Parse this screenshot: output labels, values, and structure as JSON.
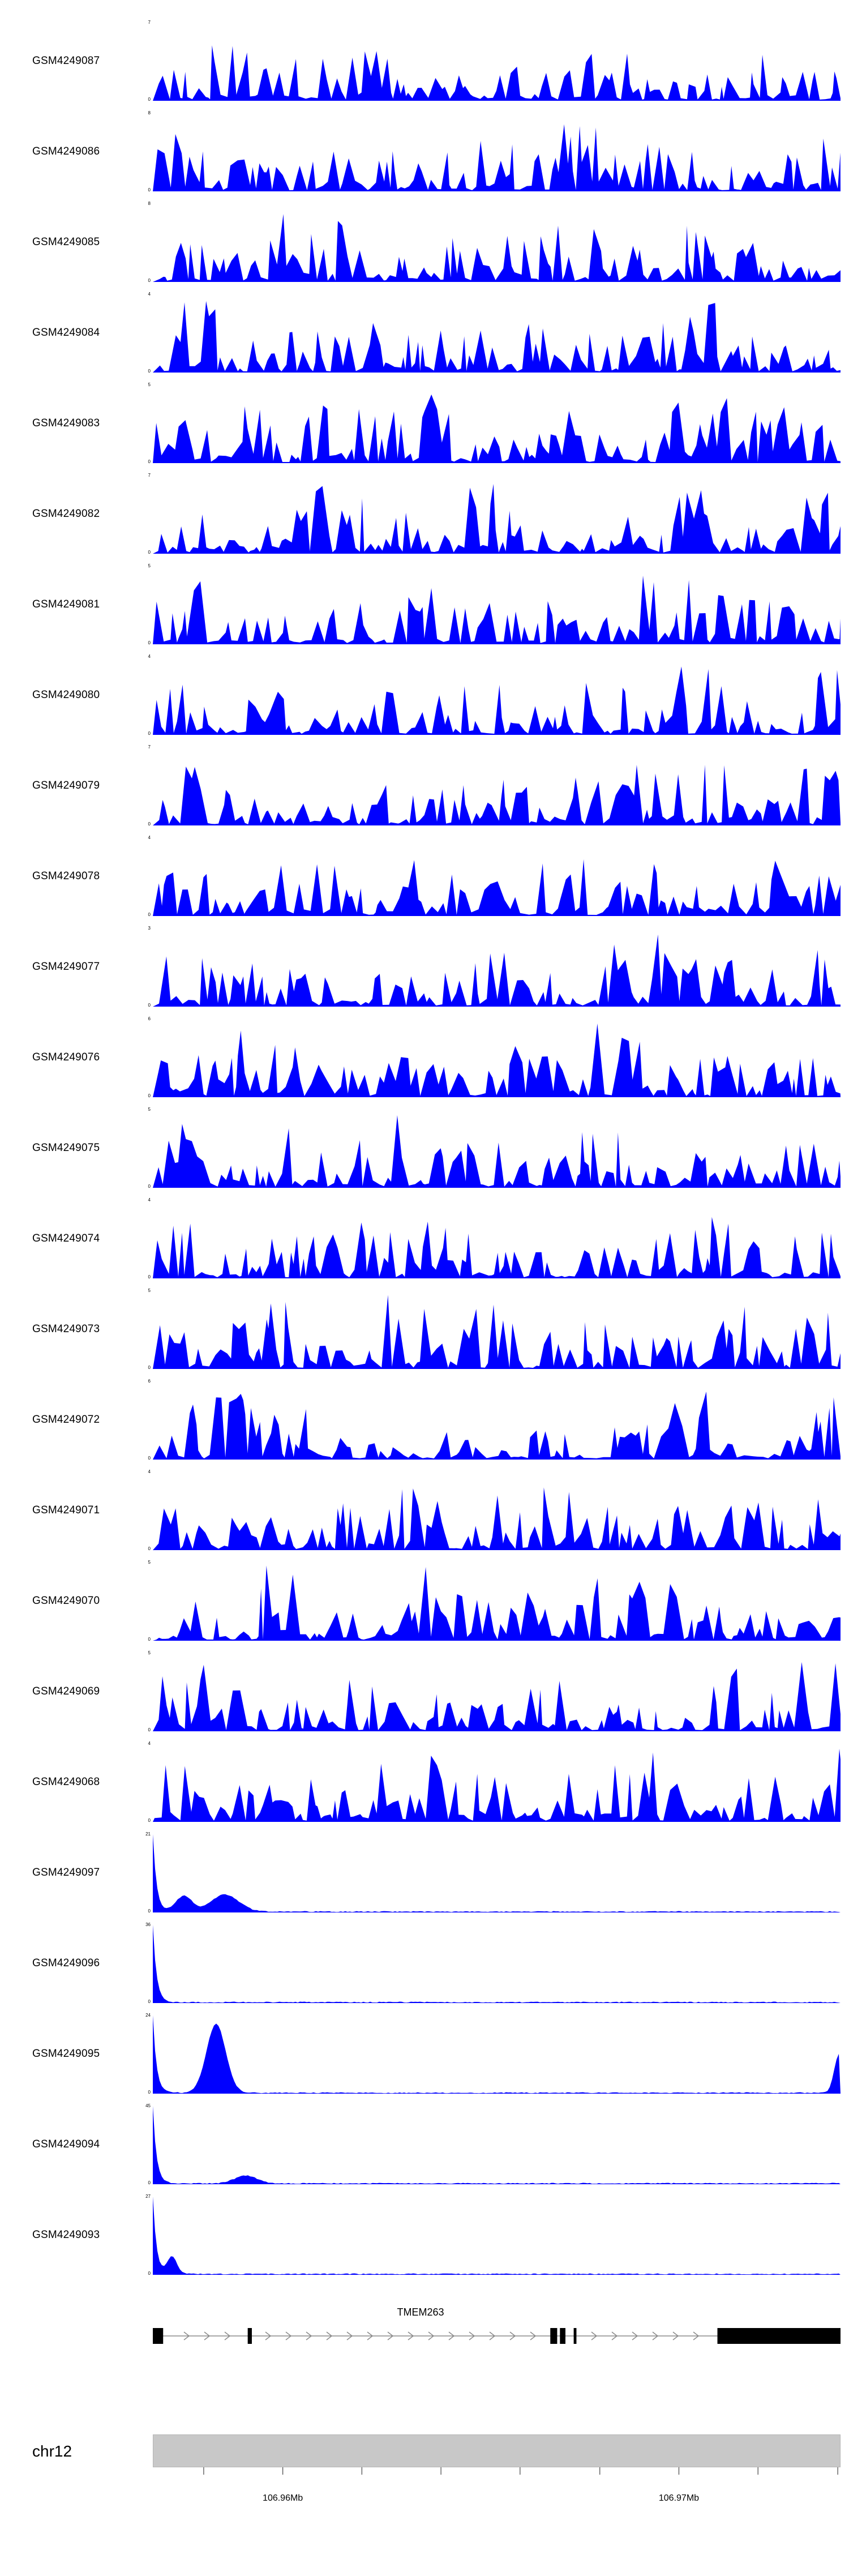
{
  "chart_data": {
    "type": "area",
    "title": "",
    "track_color": "#0000FF",
    "tracks": [
      {
        "name": "GSM4249087",
        "ymax": "7",
        "ymin": "0",
        "kind": "coverage",
        "seed": 101
      },
      {
        "name": "GSM4249086",
        "ymax": "8",
        "ymin": "0",
        "kind": "coverage",
        "seed": 102
      },
      {
        "name": "GSM4249085",
        "ymax": "8",
        "ymin": "0",
        "kind": "coverage",
        "seed": 103
      },
      {
        "name": "GSM4249084",
        "ymax": "4",
        "ymin": "0",
        "kind": "coverage",
        "seed": 104
      },
      {
        "name": "GSM4249083",
        "ymax": "5",
        "ymin": "0",
        "kind": "coverage",
        "seed": 105
      },
      {
        "name": "GSM4249082",
        "ymax": "7",
        "ymin": "0",
        "kind": "coverage",
        "seed": 106
      },
      {
        "name": "GSM4249081",
        "ymax": "5",
        "ymin": "0",
        "kind": "coverage",
        "seed": 107
      },
      {
        "name": "GSM4249080",
        "ymax": "4",
        "ymin": "0",
        "kind": "coverage",
        "seed": 108
      },
      {
        "name": "GSM4249079",
        "ymax": "7",
        "ymin": "0",
        "kind": "coverage",
        "seed": 109
      },
      {
        "name": "GSM4249078",
        "ymax": "4",
        "ymin": "0",
        "kind": "coverage",
        "seed": 110
      },
      {
        "name": "GSM4249077",
        "ymax": "3",
        "ymin": "0",
        "kind": "coverage",
        "seed": 111
      },
      {
        "name": "GSM4249076",
        "ymax": "6",
        "ymin": "0",
        "kind": "coverage",
        "seed": 112
      },
      {
        "name": "GSM4249075",
        "ymax": "5",
        "ymin": "0",
        "kind": "coverage",
        "seed": 113
      },
      {
        "name": "GSM4249074",
        "ymax": "4",
        "ymin": "0",
        "kind": "coverage",
        "seed": 114
      },
      {
        "name": "GSM4249073",
        "ymax": "5",
        "ymin": "0",
        "kind": "coverage",
        "seed": 115
      },
      {
        "name": "GSM4249072",
        "ymax": "6",
        "ymin": "0",
        "kind": "coverage",
        "seed": 116
      },
      {
        "name": "GSM4249071",
        "ymax": "4",
        "ymin": "0",
        "kind": "coverage",
        "seed": 117
      },
      {
        "name": "GSM4249070",
        "ymax": "5",
        "ymin": "0",
        "kind": "coverage",
        "seed": 118
      },
      {
        "name": "GSM4249069",
        "ymax": "5",
        "ymin": "0",
        "kind": "coverage",
        "seed": 119
      },
      {
        "name": "GSM4249068",
        "ymax": "4",
        "ymin": "0",
        "kind": "coverage",
        "seed": 120
      },
      {
        "name": "GSM4249097",
        "ymax": "21",
        "ymin": "0",
        "kind": "expression",
        "seed": 121,
        "bumps": [
          {
            "f": 0.045,
            "h": 0.2,
            "w": 0.012
          },
          {
            "f": 0.105,
            "h": 0.22,
            "w": 0.02
          }
        ]
      },
      {
        "name": "GSM4249096",
        "ymax": "36",
        "ymin": "0",
        "kind": "expression",
        "seed": 122,
        "bumps": []
      },
      {
        "name": "GSM4249095",
        "ymax": "24",
        "ymin": "0",
        "kind": "expression",
        "seed": 123,
        "bumps": [
          {
            "f": 0.092,
            "h": 0.88,
            "w": 0.014
          },
          {
            "f": 0.998,
            "h": 0.5,
            "w": 0.007
          }
        ]
      },
      {
        "name": "GSM4249094",
        "ymax": "45",
        "ymin": "0",
        "kind": "expression",
        "seed": 124,
        "bumps": [
          {
            "f": 0.135,
            "h": 0.1,
            "w": 0.016
          }
        ]
      },
      {
        "name": "GSM4249093",
        "ymax": "27",
        "ymin": "0",
        "kind": "expression",
        "seed": 125,
        "bumps": [
          {
            "f": 0.028,
            "h": 0.22,
            "w": 0.007
          }
        ]
      }
    ],
    "gene_track": {
      "gene_label": "TMEM263",
      "strand": "+",
      "exon_color": "#000000",
      "line_color": "#8a8a8a",
      "exons": [
        {
          "f0": 0.0,
          "f1": 0.015
        },
        {
          "f0": 0.138,
          "f1": 0.144
        },
        {
          "f0": 0.578,
          "f1": 0.588
        },
        {
          "f0": 0.592,
          "f1": 0.6
        },
        {
          "f0": 0.612,
          "f1": 0.616
        },
        {
          "f0": 0.821,
          "f1": 1.0
        }
      ]
    },
    "axis": {
      "chrom_label": "chr12",
      "bar_color": "#c8c8c8",
      "ticks": [
        {
          "f": 0.074,
          "label": ""
        },
        {
          "f": 0.189,
          "label": "106.96Mb"
        },
        {
          "f": 0.304,
          "label": ""
        },
        {
          "f": 0.419,
          "label": ""
        },
        {
          "f": 0.534,
          "label": ""
        },
        {
          "f": 0.65,
          "label": ""
        },
        {
          "f": 0.765,
          "label": "106.97Mb"
        },
        {
          "f": 0.88,
          "label": ""
        },
        {
          "f": 0.996,
          "label": ""
        }
      ]
    }
  }
}
